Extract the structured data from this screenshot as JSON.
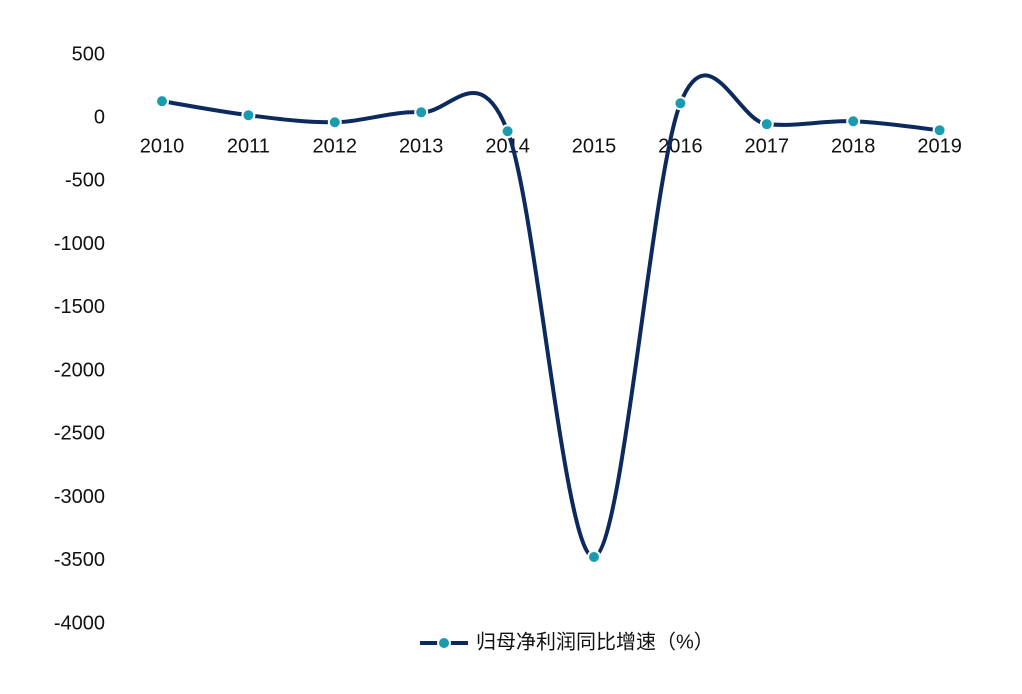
{
  "chart_data": {
    "type": "line",
    "categories": [
      "2010",
      "2011",
      "2012",
      "2013",
      "2014",
      "2015",
      "2016",
      "2017",
      "2018",
      "2019"
    ],
    "series": [
      {
        "name": "归母净利润同比增速（%）",
        "color": "#0d2a5e",
        "marker_color": "#1a9bb0",
        "values": [
          135,
          24,
          -32,
          47,
          -103,
          -3470,
          118,
          -47,
          -24,
          -95
        ]
      }
    ],
    "ylim": [
      -4000,
      500
    ],
    "yticks": [
      -4000,
      -3500,
      -3000,
      -2500,
      -2000,
      -1500,
      -1000,
      -500,
      0,
      500
    ],
    "grid": false,
    "legend": "bottom"
  }
}
